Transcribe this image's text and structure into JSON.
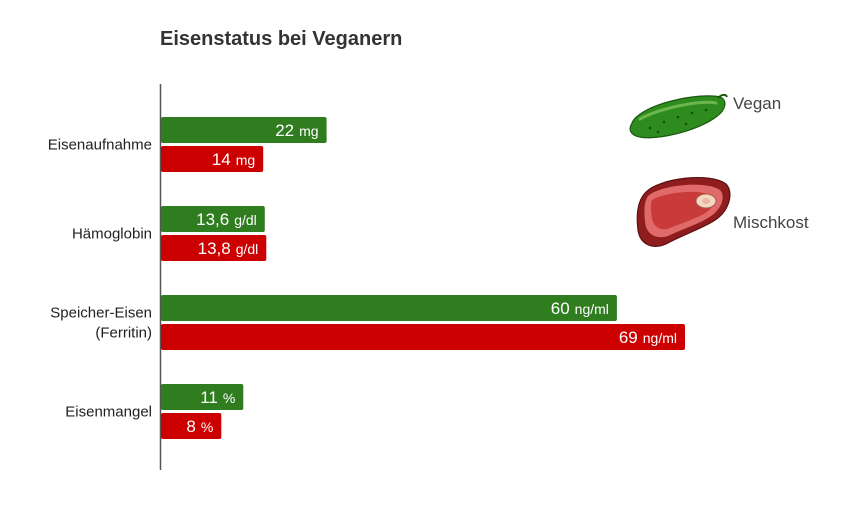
{
  "chart_data": {
    "type": "bar",
    "orientation": "horizontal",
    "title": "Eisenstatus bei Veganern",
    "categories": [
      [
        "Eisenaufnahme"
      ],
      [
        "Hämoglobin"
      ],
      [
        "Speicher-Eisen",
        "(Ferritin)"
      ],
      [
        "Eisenmangel"
      ]
    ],
    "series": [
      {
        "name": "Vegan",
        "color": "#2f7d1f",
        "icon": "cucumber-icon",
        "labels": [
          {
            "num": "22",
            "unit": "mg"
          },
          {
            "num": "13,6",
            "unit": "g/dl"
          },
          {
            "num": "60",
            "unit": "ng/ml"
          },
          {
            "num": "11",
            "unit": "%"
          }
        ],
        "values": [
          22,
          13.6,
          60,
          11
        ]
      },
      {
        "name": "Mischkost",
        "color": "#cc0000",
        "icon": "meat-icon",
        "labels": [
          {
            "num": "14",
            "unit": "mg"
          },
          {
            "num": "13,8",
            "unit": "g/dl"
          },
          {
            "num": "69",
            "unit": "ng/ml"
          },
          {
            "num": "8",
            "unit": "%"
          }
        ],
        "values": [
          14,
          13.8,
          69,
          8
        ]
      }
    ],
    "bar_relative_widths": [
      [
        0.316,
        0.195
      ],
      [
        0.198,
        0.201
      ],
      [
        0.87,
        1.0
      ],
      [
        0.157,
        0.115
      ]
    ],
    "legend_position": "right",
    "grid": false
  }
}
